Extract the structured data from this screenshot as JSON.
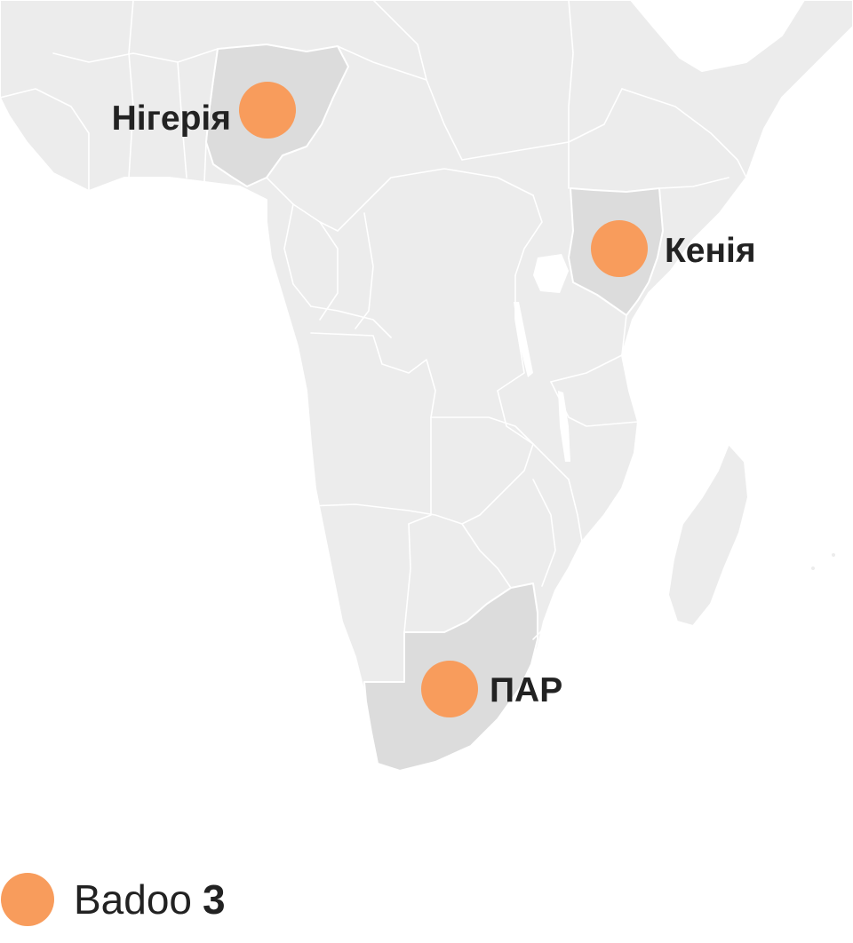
{
  "map": {
    "region": "Africa",
    "marker_color": "#f89c5c",
    "highlight_fill": "#dcdcdc",
    "land_fill": "#ececec",
    "markers": [
      {
        "country": "Нігерія",
        "app": "Badoo"
      },
      {
        "country": "Кенія",
        "app": "Badoo"
      },
      {
        "country": "ПАР",
        "app": "Badoo"
      }
    ]
  },
  "legend": {
    "label": "Badoo",
    "count": "3",
    "color": "#f89c5c"
  }
}
